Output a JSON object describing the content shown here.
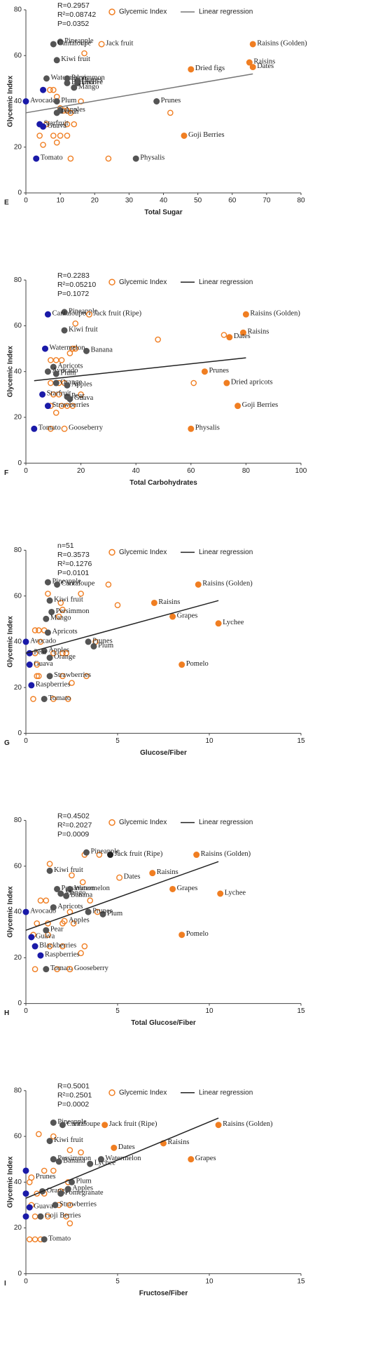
{
  "chart_data": [
    {
      "type": "scatter",
      "panel": "E",
      "stats": [
        "R=0.2957",
        "R²=0.08742",
        "P=0.0352"
      ],
      "x_label": "Total Sugar",
      "y_label": "Glycemic Index",
      "xlim": [
        0,
        80
      ],
      "xticks": [
        0,
        10,
        20,
        30,
        40,
        50,
        60,
        70,
        80
      ],
      "ylim": [
        0,
        80
      ],
      "yticks": [
        0,
        20,
        40,
        60,
        80
      ],
      "series": [
        {
          "name": "Glycemic Index",
          "color": "#f07e22",
          "x": [
            17,
            7,
            8,
            9,
            10,
            11,
            12,
            13,
            14,
            12,
            8,
            10,
            12,
            4,
            5,
            9,
            13,
            24,
            42,
            6,
            16
          ],
          "values": [
            61,
            45,
            45,
            42,
            37,
            36,
            36,
            35,
            30,
            30,
            25,
            25,
            25,
            25,
            21,
            22,
            15,
            15,
            35,
            30,
            40
          ]
        },
        {
          "name": "Linear regression",
          "color": "#777777",
          "x": [
            0,
            66
          ],
          "values": [
            35,
            52
          ]
        }
      ],
      "labeled_points": {
        "labels": [
          "Pineapple",
          "Cantaloupe",
          "Jack fruit",
          "Kiwi fruit",
          "Raisins (Golden)",
          "Raisins",
          "Dates",
          "Dried figs",
          "Watermelon",
          "Persimmon",
          "Grapes",
          "Banana",
          "Lychee",
          "Mango",
          "Avocado",
          "Plum",
          "Apples",
          "Peach",
          "Starfruit",
          "Guava",
          "Tomato",
          "Prunes",
          "Goji Berries",
          "Physalis",
          null
        ],
        "x": [
          10,
          8,
          22,
          9,
          66,
          65,
          66,
          48,
          6,
          12,
          15,
          12,
          15,
          14,
          0,
          9,
          10,
          9,
          4,
          5,
          3,
          38,
          46,
          32,
          5
        ],
        "y": [
          66,
          65,
          65,
          58,
          65,
          57,
          55,
          54,
          50,
          50,
          49,
          48,
          48,
          46,
          40,
          40,
          36,
          35,
          30,
          29,
          15,
          40,
          25,
          15,
          45
        ],
        "fill": [
          "#555555",
          "#555555",
          "none",
          "#555555",
          "#f07e22",
          "#f07e22",
          "#f07e22",
          "#f07e22",
          "#555555",
          "#555555",
          "#555555",
          "#555555",
          "#555555",
          "#555555",
          "#1a1aa8",
          "#555555",
          "#555555",
          "#555555",
          "#1a1aa8",
          "#1a1aa8",
          "#1a1aa8",
          "#555555",
          "#f07e22",
          "#555555",
          "#1a1aa8"
        ]
      }
    },
    {
      "type": "scatter",
      "panel": "F",
      "stats": [
        "R=0.2283",
        "R²=0.05210",
        "P=0.1072"
      ],
      "x_label": "Total Carbohydrates",
      "y_label": "Glycemic Index",
      "xlim": [
        0,
        100
      ],
      "xticks": [
        0,
        20,
        40,
        60,
        80,
        100
      ],
      "ylim": [
        0,
        80
      ],
      "yticks": [
        0,
        20,
        40,
        60,
        80
      ],
      "series": [
        {
          "name": "Glycemic Index",
          "color": "#f07e22",
          "x": [
            18,
            48,
            72,
            61,
            9,
            11,
            13,
            16,
            17,
            18,
            9,
            12,
            14,
            10,
            12,
            20,
            13,
            15,
            17,
            9,
            11,
            9
          ],
          "values": [
            61,
            54,
            56,
            35,
            45,
            45,
            45,
            48,
            50,
            50,
            35,
            35,
            35,
            30,
            30,
            30,
            25,
            25,
            25,
            25,
            22,
            15
          ]
        },
        {
          "name": "Linear regression",
          "color": "#222222",
          "x": [
            3,
            80
          ],
          "values": [
            36,
            46
          ]
        }
      ],
      "labeled_points": {
        "labels": [
          "Pineapple",
          "Cantaloupe",
          "Jack fruit (Ripe)",
          "Raisins (Golden)",
          "Kiwi fruit",
          "Raisins",
          "Dates",
          "Watermelon",
          "Banana",
          "Apricots",
          "Avocado",
          "Plum",
          "Orange",
          "Prunes",
          "Apples",
          "Dried apricots",
          "Pear",
          "Starfruit",
          "Guava",
          "Strawberries",
          "Goji Berries",
          "Tomato",
          "Gooseberry",
          "Physalis"
        ],
        "x": [
          14,
          8,
          23,
          80,
          14,
          79,
          74,
          7,
          22,
          10,
          8,
          11,
          11,
          65,
          15,
          73,
          15,
          6,
          16,
          8,
          77,
          3,
          14,
          60
        ],
        "y": [
          66,
          65,
          65,
          65,
          58,
          57,
          55,
          50,
          49,
          42,
          40,
          39,
          35,
          40,
          34,
          35,
          29,
          30,
          28,
          25,
          25,
          15,
          15,
          15
        ],
        "fill": [
          "#555555",
          "#1a1aa8",
          "none",
          "#f07e22",
          "#555555",
          "#f07e22",
          "#f07e22",
          "#1a1aa8",
          "#555555",
          "#555555",
          "#555555",
          "#555555",
          "#555555",
          "#f07e22",
          "#555555",
          "#f07e22",
          "#555555",
          "#1a1aa8",
          "#555555",
          "#1a1aa8",
          "#f07e22",
          "#1a1aa8",
          "none",
          "#f07e22"
        ]
      }
    },
    {
      "type": "scatter",
      "panel": "G",
      "stats": [
        "n=51",
        "R=0.3573",
        "R²=0.1276",
        "P=0.0101"
      ],
      "x_label": "Glucose/Fiber",
      "y_label": "Glycemic Index",
      "xlim": [
        0,
        15
      ],
      "xticks": [
        0,
        5,
        10,
        15
      ],
      "ylim": [
        0,
        80
      ],
      "yticks": [
        0,
        20,
        40,
        60,
        80
      ],
      "series": [
        {
          "name": "Glycemic Index",
          "color": "#f07e22",
          "x": [
            4.5,
            5.0,
            1.2,
            3.0,
            1.9,
            2.0,
            1.8,
            0.5,
            0.7,
            1.0,
            0.8,
            0.5,
            1.5,
            2.0,
            2.2,
            3.8,
            0.6,
            0.7,
            2.0,
            3.3,
            2.5,
            0.4,
            1.5,
            2.3,
            0.6
          ],
          "values": [
            65,
            56,
            61,
            61,
            57,
            54,
            51,
            45,
            45,
            45,
            40,
            35,
            35,
            35,
            35,
            40,
            30,
            25,
            25,
            25,
            22,
            15,
            15,
            15,
            25
          ]
        },
        {
          "name": "Linear regression",
          "color": "#222222",
          "x": [
            0,
            10.5
          ],
          "values": [
            35,
            58
          ]
        }
      ],
      "labeled_points": {
        "labels": [
          "Pineapple",
          "Cantaloupe",
          "Raisins (Golden)",
          "Kiwi fruit",
          "Raisins",
          "Persimmon",
          "Grapes",
          "Mango",
          "Lychee",
          "Apricots",
          "Avocado",
          "Apples",
          "Pear",
          "Orange",
          "Prunes",
          "Plum",
          "Guava",
          "Pomelo",
          "Strawberries",
          "Raspberries",
          "Tomato"
        ],
        "x": [
          1.2,
          1.7,
          9.4,
          1.3,
          7.0,
          1.4,
          8.0,
          1.1,
          10.5,
          1.2,
          0,
          1.0,
          0.2,
          1.3,
          3.4,
          3.7,
          0.2,
          8.5,
          1.3,
          0.3,
          1.0
        ],
        "y": [
          66,
          65,
          65,
          58,
          57,
          53,
          51,
          50,
          48,
          44,
          40,
          36,
          35,
          33,
          40,
          38,
          30,
          30,
          25,
          21,
          15
        ],
        "fill": [
          "#555555",
          "#555555",
          "#f07e22",
          "#555555",
          "#f07e22",
          "#555555",
          "#f07e22",
          "#555555",
          "#f07e22",
          "#555555",
          "#1a1aa8",
          "#555555",
          "#1a1aa8",
          "#555555",
          "#555555",
          "#555555",
          "#1a1aa8",
          "#f07e22",
          "#555555",
          "#1a1aa8",
          "#555555"
        ]
      }
    },
    {
      "type": "scatter",
      "panel": "H",
      "stats": [
        "R=0.4502",
        "R²=0.2027",
        "P=0.0009"
      ],
      "x_label": "Total Glucose/Fiber",
      "y_label": "Glycemic Index",
      "xlim": [
        0,
        15
      ],
      "xticks": [
        0,
        5,
        10,
        15
      ],
      "ylim": [
        0,
        80
      ],
      "yticks": [
        0,
        20,
        40,
        60,
        80
      ],
      "series": [
        {
          "name": "Glycemic Index",
          "color": "#f07e22",
          "x": [
            1.3,
            3.2,
            4.0,
            2.5,
            3.1,
            3.5,
            2.4,
            3.9,
            0.8,
            1.1,
            0.6,
            1.2,
            2.0,
            2.6,
            1.2,
            0.4,
            1.3,
            2.0,
            3.2,
            3.0,
            0.5,
            1.7
          ],
          "values": [
            61,
            65,
            65,
            56,
            53,
            45,
            40,
            40,
            45,
            45,
            35,
            35,
            35,
            35,
            30,
            30,
            25,
            25,
            25,
            22,
            15,
            15
          ]
        },
        {
          "name": "Linear regression",
          "color": "#222222",
          "x": [
            0,
            10.5
          ],
          "values": [
            32,
            62
          ]
        }
      ],
      "labeled_points": {
        "labels": [
          "Pineapple",
          "Jack fruit (Ripe)",
          "Raisins (Golden)",
          "Kiwi fruit",
          "Dates",
          "Raisins",
          "Persimmon",
          "Watermelon",
          "Grapes",
          "Mango",
          "Banana",
          "Lychee",
          "Avocado",
          "Apricots",
          "Plum",
          "Apples",
          "Prunes",
          "Pear",
          "Pomelo",
          "Guava",
          "Blackberries",
          "Raspberries",
          "Tomato",
          "Gooseberry"
        ],
        "x": [
          3.3,
          4.6,
          9.3,
          1.3,
          5.1,
          6.9,
          1.7,
          2.4,
          8.0,
          1.9,
          2.2,
          10.6,
          0,
          1.5,
          4.2,
          2.1,
          3.4,
          1.1,
          8.5,
          0.3,
          0.5,
          0.8,
          1.1,
          2.4
        ],
        "y": [
          66,
          65,
          65,
          58,
          55,
          57,
          50,
          50,
          50,
          48,
          47,
          48,
          40,
          42,
          39,
          36,
          40,
          32,
          30,
          29,
          25,
          21,
          15,
          15
        ],
        "fill": [
          "#555555",
          "#222222",
          "#f07e22",
          "#555555",
          "none",
          "#f07e22",
          "#555555",
          "#555555",
          "#f07e22",
          "#555555",
          "#555555",
          "#f07e22",
          "#1a1aa8",
          "#555555",
          "#555555",
          "none",
          "#555555",
          "#555555",
          "#f07e22",
          "#1a1aa8",
          "#1a1aa8",
          "#1a1aa8",
          "#555555",
          "none"
        ]
      }
    },
    {
      "type": "scatter",
      "panel": "I",
      "stats": [
        "R=0.5001",
        "R²=0.2501",
        "P=0.0002"
      ],
      "x_label": "Fructose/Fiber",
      "y_label": "Glycemic Index",
      "xlim": [
        0,
        15
      ],
      "xticks": [
        0,
        5,
        10,
        15
      ],
      "ylim": [
        0,
        80
      ],
      "yticks": [
        0,
        20,
        40,
        60,
        80
      ],
      "series": [
        {
          "name": "Glycemic Index",
          "color": "#f07e22",
          "x": [
            0.7,
            1.5,
            2.4,
            3.0,
            1.0,
            1.5,
            2.3,
            0.6,
            1.0,
            1.9,
            1.8,
            2.4,
            0.3,
            0.5,
            1.2,
            2.2,
            2.4,
            0.2,
            0.5,
            0.8,
            0.2
          ],
          "values": [
            61,
            60,
            54,
            53,
            45,
            45,
            40,
            35,
            35,
            36,
            30,
            30,
            30,
            25,
            25,
            25,
            22,
            15,
            15,
            15,
            40
          ]
        },
        {
          "name": "Linear regression",
          "color": "#222222",
          "x": [
            0,
            10.5
          ],
          "values": [
            33,
            68
          ]
        }
      ],
      "labeled_points": {
        "labels": [
          "Pineapple",
          "Jack fruit (Ripe)",
          "Cantaloupe",
          "Raisins (Golden)",
          "Kiwi fruit",
          "Dates",
          "Raisins",
          "Grapes",
          "Persimmon",
          "Watermelon",
          "Banana",
          "Lychee",
          "Prunes",
          "Plum",
          "Orange",
          "Pomegranate",
          "Apples",
          "Guava",
          "Strawberries",
          "Goji Berries",
          "Tomato",
          null,
          null,
          null
        ],
        "x": [
          1.5,
          4.3,
          2.0,
          10.5,
          1.3,
          4.8,
          7.5,
          9.0,
          1.5,
          4.1,
          1.8,
          3.5,
          0.3,
          2.5,
          0.9,
          1.9,
          2.3,
          0.2,
          1.6,
          0.8,
          1.0,
          0,
          0,
          0
        ],
        "y": [
          66,
          65,
          65,
          65,
          58,
          55,
          57,
          50,
          50,
          50,
          49,
          48,
          42,
          40,
          36,
          35,
          37,
          29,
          30,
          25,
          15,
          45,
          35,
          25
        ],
        "fill": [
          "#555555",
          "#f07e22",
          "#555555",
          "#f07e22",
          "#555555",
          "#f07e22",
          "#f07e22",
          "#f07e22",
          "#555555",
          "#555555",
          "#555555",
          "#555555",
          "none",
          "#555555",
          "#555555",
          "#555555",
          "#555555",
          "#1a1aa8",
          "#555555",
          "#555555",
          "#555555",
          "#1a1aa8",
          "#1a1aa8",
          "#1a1aa8"
        ]
      }
    }
  ]
}
